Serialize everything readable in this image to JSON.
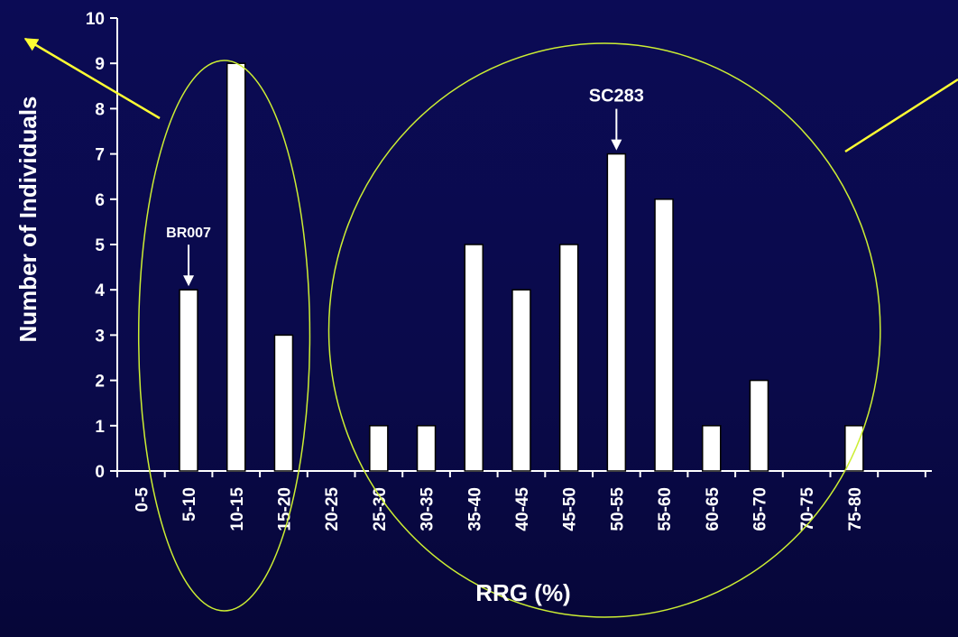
{
  "chart_data": {
    "type": "bar",
    "title": "",
    "xlabel": "RRG (%)",
    "ylabel": "Number of Individuals",
    "ylim": [
      0,
      10
    ],
    "yticks": [
      0,
      1,
      2,
      3,
      4,
      5,
      6,
      7,
      8,
      9,
      10
    ],
    "categories": [
      "0-5",
      "5-10",
      "10-15",
      "15-20",
      "20-25",
      "25-30",
      "30-35",
      "35-40",
      "40-45",
      "45-50",
      "50-55",
      "55-60",
      "60-65",
      "65-70",
      "70-75",
      "75-80"
    ],
    "values": [
      0,
      4,
      9,
      3,
      0,
      1,
      1,
      5,
      4,
      5,
      7,
      6,
      1,
      2,
      0,
      1
    ],
    "grid": false,
    "legend": "none",
    "annotations": [
      {
        "text": "BR007",
        "category": "5-10"
      },
      {
        "text": "SC283",
        "category": "50-55"
      }
    ],
    "groups": [
      {
        "categories": [
          "5-10",
          "10-15",
          "15-20"
        ]
      },
      {
        "categories": [
          "25-30",
          "30-35",
          "35-40",
          "40-45",
          "45-50",
          "50-55",
          "55-60",
          "60-65",
          "65-70",
          "70-75",
          "75-80"
        ]
      }
    ]
  },
  "colors": {
    "background": "#0b0b55",
    "bar_fill": "#ffffff",
    "bar_stroke": "#000000",
    "axis": "#ffffff",
    "text": "#ffffff",
    "ellipse": "#ccee33",
    "pointer_arrow": "#ffff33"
  }
}
